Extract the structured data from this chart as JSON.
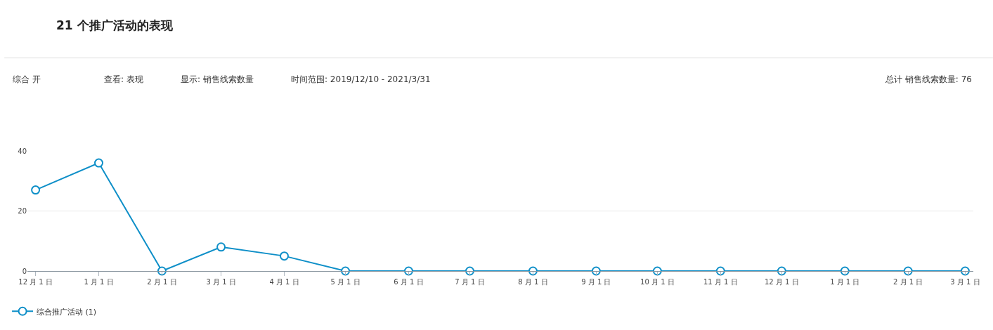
{
  "chart_data": {
    "type": "line",
    "title": "21 个推广活动的表现",
    "annotations": [
      "综合 开",
      "查看: 表现",
      "显示: 销售线索数量",
      "时间范围: 2019/12/10 - 2021/3/31",
      "总计 销售线索数量: 76"
    ],
    "x": [
      "2019-12-01",
      "2020-01-01",
      "2020-02-01",
      "2020-03-01",
      "2020-04-01",
      "2020-05-01",
      "2020-06-01",
      "2020-07-01",
      "2020-08-01",
      "2020-09-01",
      "2020-10-01",
      "2020-11-01",
      "2020-12-01",
      "2021-01-01",
      "2021-02-01",
      "2021-03-01"
    ],
    "series": [
      {
        "name": "综合推广活动 (1)",
        "color": "#0e8fc8",
        "values": [
          27,
          36,
          0,
          8,
          5,
          0,
          0,
          0,
          0,
          0,
          0,
          0,
          0,
          0,
          0,
          0
        ]
      }
    ],
    "xlim": [
      "2019-11-27",
      "2021-03-05"
    ],
    "xticks": [
      {
        "value": "2019-12-01",
        "label": "12 月 1 日"
      },
      {
        "value": "2020-01-01",
        "label": "1 月 1 日"
      },
      {
        "value": "2020-02-01",
        "label": "2 月 1 日"
      },
      {
        "value": "2020-03-01",
        "label": "3 月 1 日"
      },
      {
        "value": "2020-04-01",
        "label": "4 月 1 日"
      },
      {
        "value": "2020-05-01",
        "label": "5 月 1 日"
      },
      {
        "value": "2020-06-01",
        "label": "6 月 1 日"
      },
      {
        "value": "2020-07-01",
        "label": "7 月 1 日"
      },
      {
        "value": "2020-08-01",
        "label": "8 月 1 日"
      },
      {
        "value": "2020-09-01",
        "label": "9 月 1 日"
      },
      {
        "value": "2020-10-01",
        "label": "10 月 1 日"
      },
      {
        "value": "2020-11-01",
        "label": "11 月 1 日"
      },
      {
        "value": "2020-12-01",
        "label": "12 月 1 日"
      },
      {
        "value": "2021-01-01",
        "label": "1 月 1 日"
      },
      {
        "value": "2021-02-01",
        "label": "2 月 1 日"
      },
      {
        "value": "2021-03-01",
        "label": "3 月 1 日"
      }
    ],
    "ylim": [
      0,
      40
    ],
    "yticks": [
      0,
      20,
      40
    ],
    "grid": "y",
    "legend": "bottom left",
    "marker": "circle",
    "line_style": "solid"
  }
}
